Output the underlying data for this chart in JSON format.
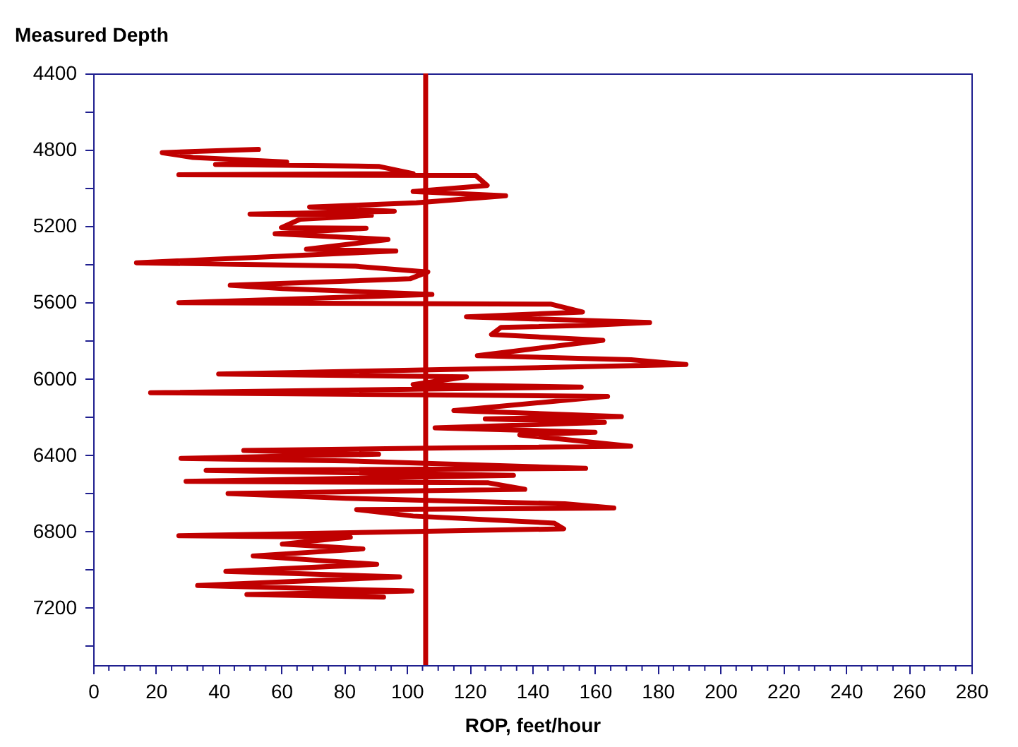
{
  "chart_data": {
    "type": "line",
    "ylabel": "Measured Depth",
    "xlabel": "ROP, feet/hour",
    "xlim": [
      0,
      280
    ],
    "ylim": [
      7500,
      4400
    ],
    "xticks": [
      0,
      {
        "value": 5,
        "label": null
      },
      {
        "value": 10,
        "label": null
      },
      {
        "value": 15,
        "label": null
      },
      20,
      {
        "value": 25,
        "label": null
      },
      {
        "value": 30,
        "label": null
      },
      {
        "value": 35,
        "label": null
      },
      40,
      {
        "value": 45,
        "label": null
      },
      {
        "value": 50,
        "label": null
      },
      {
        "value": 55,
        "label": null
      },
      60,
      {
        "value": 65,
        "label": null
      },
      {
        "value": 70,
        "label": null
      },
      {
        "value": 75,
        "label": null
      },
      80,
      {
        "value": 85,
        "label": null
      },
      {
        "value": 90,
        "label": null
      },
      {
        "value": 95,
        "label": null
      },
      100,
      {
        "value": 105,
        "label": null
      },
      {
        "value": 110,
        "label": null
      },
      {
        "value": 115,
        "label": null
      },
      120,
      {
        "value": 125,
        "label": null
      },
      {
        "value": 130,
        "label": null
      },
      {
        "value": 135,
        "label": null
      },
      140,
      {
        "value": 145,
        "label": null
      },
      {
        "value": 150,
        "label": null
      },
      {
        "value": 155,
        "label": null
      },
      160,
      {
        "value": 165,
        "label": null
      },
      {
        "value": 170,
        "label": null
      },
      {
        "value": 175,
        "label": null
      },
      180,
      {
        "value": 185,
        "label": null
      },
      {
        "value": 190,
        "label": null
      },
      {
        "value": 195,
        "label": null
      },
      200,
      {
        "value": 205,
        "label": null
      },
      {
        "value": 210,
        "label": null
      },
      {
        "value": 215,
        "label": null
      },
      220,
      {
        "value": 225,
        "label": null
      },
      {
        "value": 230,
        "label": null
      },
      {
        "value": 235,
        "label": null
      },
      240,
      {
        "value": 245,
        "label": null
      },
      {
        "value": 250,
        "label": null
      },
      {
        "value": 255,
        "label": null
      },
      260,
      {
        "value": 265,
        "label": null
      },
      {
        "value": 270,
        "label": null
      },
      {
        "value": 275,
        "label": null
      },
      280
    ],
    "yticks": [
      4400,
      {
        "value": 4600,
        "label": null
      },
      4800,
      {
        "value": 5000,
        "label": null
      },
      5200,
      {
        "value": 5400,
        "label": null
      },
      5600,
      {
        "value": 5800,
        "label": null
      },
      6000,
      {
        "value": 6200,
        "label": null
      },
      6400,
      {
        "value": 6600,
        "label": null
      },
      6800,
      {
        "value": 7000,
        "label": null
      },
      7200,
      {
        "value": 7400,
        "label": null
      }
    ],
    "grid": false,
    "marker": "none",
    "line_style": "solid",
    "ref_lines": [
      {
        "axis": "x",
        "value": 106,
        "color": "#c00000",
        "line_style": "solid"
      }
    ],
    "series": [
      {
        "color": "#c00000",
        "x": [
          52.7,
          22,
          31.8,
          61.7,
          39,
          91,
          102,
          27.3,
          122,
          125.6,
          102,
          131.5,
          103,
          69,
          96,
          50,
          88.7,
          66,
          60,
          87,
          58,
          94,
          68,
          96.5,
          13.8,
          83.6,
          106.7,
          101,
          43.7,
          60.3,
          108,
          27.3,
          146,
          156,
          119,
          177.4,
          158,
          130,
          127,
          162.5,
          122.5,
          171.5,
          189,
          146.8,
          40,
          119,
          102,
          155.6,
          18.3,
          164,
          115,
          168.4,
          125,
          163,
          109,
          160,
          136,
          171.4,
          115,
          48,
          91,
          28,
          80.6,
          157,
          36,
          134,
          29.6,
          126,
          137.6,
          43,
          80.6,
          150.4,
          166,
          84,
          102,
          147,
          150,
          27.3,
          82,
          60.3,
          86,
          51,
          90.4,
          42.3,
          97.7,
          33.3,
          101.6,
          49,
          92.6
        ],
        "values": [
          4798,
          4815,
          4840,
          4864,
          4877,
          4887,
          4925,
          4931,
          4935,
          4987,
          5019,
          5041,
          5078,
          5100,
          5122,
          5137,
          5144,
          5164,
          5208,
          5211,
          5240,
          5270,
          5321,
          5330,
          5392,
          5410,
          5440,
          5476,
          5510,
          5527,
          5558,
          5601,
          5609,
          5650,
          5675,
          5705,
          5720,
          5731,
          5768,
          5798,
          5879,
          5900,
          5925,
          5940,
          5975,
          5990,
          6030,
          6043,
          6073,
          6092,
          6166,
          6198,
          6210,
          6228,
          6257,
          6280,
          6294,
          6353,
          6362,
          6375,
          6395,
          6417,
          6430,
          6469,
          6480,
          6506,
          6537,
          6545,
          6579,
          6601,
          6626,
          6655,
          6677,
          6685,
          6719,
          6756,
          6786,
          6822,
          6830,
          6866,
          6891,
          6928,
          6972,
          7009,
          7038,
          7083,
          7112,
          7130,
          7144
        ]
      }
    ]
  }
}
